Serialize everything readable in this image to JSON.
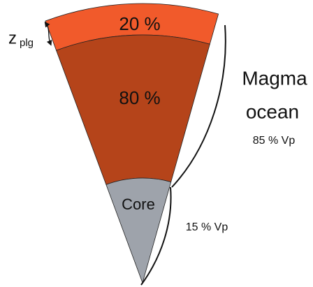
{
  "labels": {
    "top_layer": "20 %",
    "middle_layer": "80 %",
    "core": "Core",
    "magma_line1": "Magma",
    "magma_line2": "ocean",
    "magma_vp": "85 % Vp",
    "core_vp": "15 % Vp",
    "z": "z",
    "z_sub": "plg"
  }
}
